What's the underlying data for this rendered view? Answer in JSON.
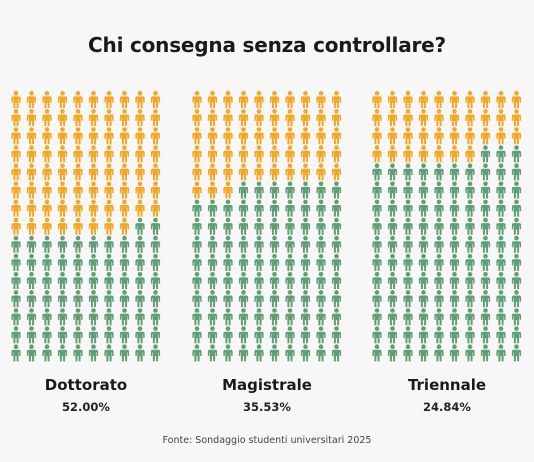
{
  "title": "Chi consegna senza controllare?",
  "source": "Fonte: Sondaggio studenti universitari 2025",
  "colors": {
    "yes": "#f5a623",
    "no": "#5f9f75",
    "background": "#f7f7f7"
  },
  "icon": "person-icon",
  "chart_data": {
    "type": "pictogram",
    "title": "Chi consegna senza controllare?",
    "icon": "person",
    "grid": {
      "columns": 10,
      "rows": 15
    },
    "series": [
      {
        "name": "Dottorato",
        "value": 52.0,
        "label": "52.00%"
      },
      {
        "name": "Magistrale",
        "value": 35.53,
        "label": "35.53%"
      },
      {
        "name": "Triennale",
        "value": 24.84,
        "label": "24.84%"
      }
    ],
    "unit": "%"
  }
}
